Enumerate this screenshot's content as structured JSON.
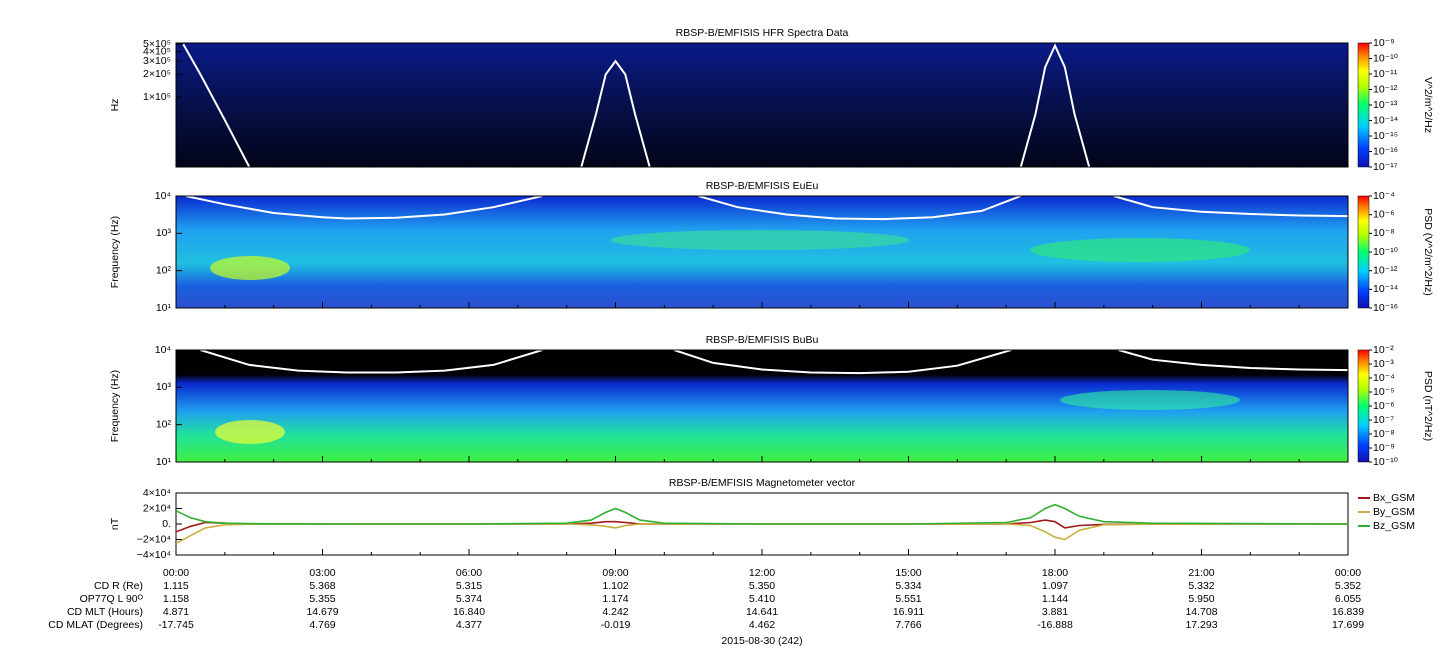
{
  "chart_data": [
    {
      "type": "spectrogram",
      "title": "RBSP-B/EMFISIS  HFR Spectra Data",
      "ylabel": "Hz",
      "ylog": true,
      "ylim": [
        12000,
        520000
      ],
      "yticks": [
        {
          "value": 100000,
          "label": "1×10⁵"
        },
        {
          "value": 200000,
          "label": "2×10⁵"
        },
        {
          "value": 300000,
          "label": "3×10⁵"
        },
        {
          "value": 400000,
          "label": "4×10⁵"
        },
        {
          "value": 500000,
          "label": "5×10⁵"
        }
      ],
      "xlim": [
        0,
        24
      ],
      "colorbar_label": "V^2/m^2/Hz",
      "clog": true,
      "clim": [
        1e-17,
        1e-09
      ],
      "cticks": [
        {
          "value": 1e-09,
          "label": "10⁻⁹"
        },
        {
          "value": 1e-10,
          "label": "10⁻¹⁰"
        },
        {
          "value": 1e-11,
          "label": "10⁻¹¹"
        },
        {
          "value": 1e-12,
          "label": "10⁻¹²"
        },
        {
          "value": 1e-13,
          "label": "10⁻¹³"
        },
        {
          "value": 1e-14,
          "label": "10⁻¹⁴"
        },
        {
          "value": 1e-15,
          "label": "10⁻¹⁵"
        },
        {
          "value": 1e-16,
          "label": "10⁻¹⁶"
        },
        {
          "value": 1e-17,
          "label": "10⁻¹⁷"
        }
      ],
      "x": [
        0.15,
        0.5,
        1,
        1.5,
        5,
        8.3,
        8.6,
        8.8,
        9,
        9.2,
        9.4,
        9.7,
        13,
        17.3,
        17.6,
        17.8,
        18,
        18.2,
        18.4,
        18.7
      ],
      "series": [
        {
          "color": "#ffffff",
          "values": [
            500000,
            200000,
            50000,
            12000,
            null,
            12000,
            60000,
            200000,
            300000,
            200000,
            60000,
            12000,
            null,
            12000,
            60000,
            250000,
            480000,
            250000,
            60000,
            12000
          ]
        }
      ]
    },
    {
      "type": "spectrogram",
      "title": "RBSP-B/EMFISIS  EuEu",
      "ylabel": "Frequency (Hz)",
      "ylog": true,
      "ylim": [
        10,
        10000
      ],
      "yticks": [
        {
          "value": 10,
          "label": "10¹"
        },
        {
          "value": 100,
          "label": "10²"
        },
        {
          "value": 1000,
          "label": "10³"
        },
        {
          "value": 10000,
          "label": "10⁴"
        }
      ],
      "xlim": [
        0,
        24
      ],
      "colorbar_label": "PSD (V^2/m^2/Hz)",
      "clog": true,
      "clim": [
        1e-16,
        0.0001
      ],
      "cticks": [
        {
          "value": 0.0001,
          "label": "10⁻⁴"
        },
        {
          "value": 1e-06,
          "label": "10⁻⁶"
        },
        {
          "value": 1e-08,
          "label": "10⁻⁸"
        },
        {
          "value": 1e-10,
          "label": "10⁻¹⁰"
        },
        {
          "value": 1e-12,
          "label": "10⁻¹²"
        },
        {
          "value": 1e-14,
          "label": "10⁻¹⁴"
        },
        {
          "value": 1e-16,
          "label": "10⁻¹⁶"
        }
      ],
      "x": [
        0.2,
        1,
        2,
        3,
        3.5,
        4.5,
        5.5,
        6.5,
        7.5,
        9,
        10.7,
        11.5,
        12.5,
        13.5,
        14.5,
        15.5,
        16.5,
        17.3,
        18.5,
        19.2,
        20,
        21,
        22,
        23,
        24
      ],
      "series": [
        {
          "color": "#ffffff",
          "values": [
            10000,
            6000,
            3500,
            2700,
            2500,
            2600,
            3200,
            5000,
            10000,
            null,
            10000,
            5000,
            3200,
            2500,
            2400,
            2700,
            4000,
            10000,
            null,
            10000,
            5000,
            3800,
            3300,
            3000,
            2900
          ]
        }
      ]
    },
    {
      "type": "spectrogram",
      "title": "RBSP-B/EMFISIS  BuBu",
      "ylabel": "Frequency (Hz)",
      "ylog": true,
      "ylim": [
        10,
        10000
      ],
      "yticks": [
        {
          "value": 10,
          "label": "10¹"
        },
        {
          "value": 100,
          "label": "10²"
        },
        {
          "value": 1000,
          "label": "10³"
        },
        {
          "value": 10000,
          "label": "10⁴"
        }
      ],
      "xlim": [
        0,
        24
      ],
      "colorbar_label": "PSD (nT^2/Hz)",
      "clog": true,
      "clim": [
        1e-10,
        0.01
      ],
      "cticks": [
        {
          "value": 0.01,
          "label": "10⁻²"
        },
        {
          "value": 0.001,
          "label": "10⁻³"
        },
        {
          "value": 0.0001,
          "label": "10⁻⁴"
        },
        {
          "value": 1e-05,
          "label": "10⁻⁵"
        },
        {
          "value": 1e-06,
          "label": "10⁻⁶"
        },
        {
          "value": 1e-07,
          "label": "10⁻⁷"
        },
        {
          "value": 1e-08,
          "label": "10⁻⁸"
        },
        {
          "value": 1e-09,
          "label": "10⁻⁹"
        },
        {
          "value": 1e-10,
          "label": "10⁻¹⁰"
        }
      ],
      "x": [
        0.5,
        1.5,
        2.5,
        3.5,
        4.5,
        5.5,
        6.5,
        7.5,
        9,
        10.2,
        11,
        12,
        13,
        14,
        15,
        16,
        17.1,
        18.5,
        19.3,
        20,
        21,
        22,
        23,
        24
      ],
      "series": [
        {
          "color": "#ffffff",
          "values": [
            10000,
            4000,
            2800,
            2500,
            2500,
            2800,
            4000,
            10000,
            null,
            10000,
            4500,
            3000,
            2500,
            2400,
            2600,
            3800,
            10000,
            null,
            10000,
            5500,
            4000,
            3300,
            3000,
            2900
          ]
        }
      ]
    },
    {
      "type": "line",
      "title": "RBSP-B/EMFISIS  Magnetometer vector",
      "ylabel": "nT",
      "ylog": false,
      "ylim": [
        -40000,
        40000
      ],
      "yticks": [
        {
          "value": -40000,
          "label": "−4×10⁴"
        },
        {
          "value": -20000,
          "label": "−2×10⁴"
        },
        {
          "value": 0,
          "label": "0."
        },
        {
          "value": 20000,
          "label": "2×10⁴"
        },
        {
          "value": 40000,
          "label": "4×10⁴"
        }
      ],
      "xlim": [
        0,
        24
      ],
      "xticks": [
        {
          "value": 0,
          "label": "00:00"
        },
        {
          "value": 3,
          "label": "03:00"
        },
        {
          "value": 6,
          "label": "06:00"
        },
        {
          "value": 9,
          "label": "09:00"
        },
        {
          "value": 12,
          "label": "12:00"
        },
        {
          "value": 15,
          "label": "15:00"
        },
        {
          "value": 18,
          "label": "18:00"
        },
        {
          "value": 21,
          "label": "21:00"
        },
        {
          "value": 24,
          "label": "00:00"
        }
      ],
      "x": [
        0,
        0.3,
        0.6,
        1,
        1.5,
        2,
        4,
        6,
        8,
        8.5,
        8.8,
        9,
        9.2,
        9.5,
        10,
        12,
        15,
        17,
        17.5,
        17.8,
        18,
        18.2,
        18.5,
        19,
        20,
        24
      ],
      "series": [
        {
          "name": "Bx_GSM",
          "color": "#a01818",
          "values": [
            -10000,
            -3000,
            2000,
            1000,
            0,
            0,
            0,
            0,
            0,
            1000,
            3000,
            3000,
            2000,
            0,
            0,
            0,
            0,
            0,
            2000,
            5000,
            3000,
            -5000,
            -2000,
            -500,
            0,
            0
          ]
        },
        {
          "name": "By_GSM",
          "color": "#c8b040",
          "values": [
            -25000,
            -15000,
            -5000,
            -1000,
            -300,
            0,
            0,
            0,
            0,
            -1000,
            -3000,
            -5000,
            -2000,
            0,
            0,
            0,
            0,
            0,
            -2000,
            -10000,
            -17000,
            -20000,
            -8000,
            -1000,
            0,
            0
          ]
        },
        {
          "name": "Bz_GSM",
          "color": "#30b030",
          "values": [
            17000,
            8000,
            3000,
            1000,
            500,
            300,
            0,
            0,
            1000,
            5000,
            15000,
            20000,
            15000,
            5000,
            1000,
            0,
            0,
            2000,
            8000,
            20000,
            25000,
            20000,
            10000,
            3000,
            1000,
            0
          ]
        }
      ]
    }
  ],
  "ephemeris": {
    "rows": [
      {
        "label": "CD R (Re)",
        "values": [
          "1.115",
          "5.368",
          "5.315",
          "1.102",
          "5.350",
          "5.334",
          "1.097",
          "5.332",
          "5.352"
        ]
      },
      {
        "label": "OP77Q L 90ᴼ",
        "values": [
          "1.158",
          "5.355",
          "5.374",
          "1.174",
          "5.410",
          "5.551",
          "1.144",
          "5.950",
          "6.055"
        ]
      },
      {
        "label": "CD MLT (Hours)",
        "values": [
          "4.871",
          "14.679",
          "16.840",
          "4.242",
          "14.641",
          "16.911",
          "3.881",
          "14.708",
          "16.839"
        ]
      },
      {
        "label": "CD MLAT (Degrees)",
        "values": [
          "-17.745",
          "4.769",
          "4.377",
          "-0.019",
          "4.462",
          "7.766",
          "-16.888",
          "17.293",
          "17.699"
        ]
      }
    ],
    "date": "2015-08-30 (242)"
  }
}
